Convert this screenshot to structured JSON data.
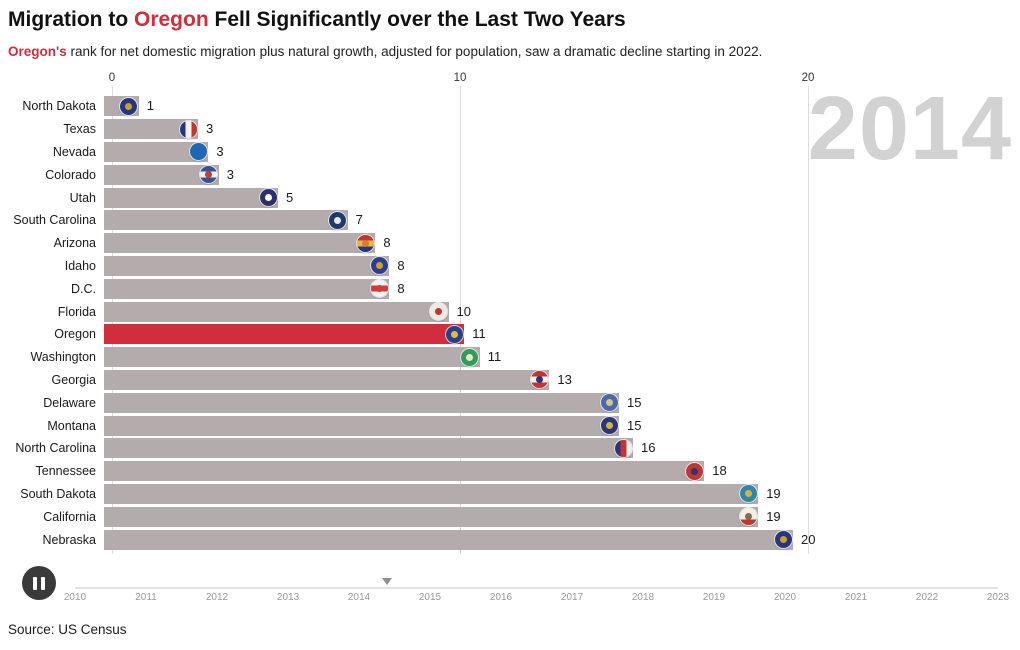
{
  "header": {
    "title_pre": "Migration to ",
    "title_highlight": "Oregon",
    "title_post": " Fell Significantly over the Last Two Years",
    "subtitle_highlight": "Oregon's",
    "subtitle_rest": " rank for net domestic migration plus natural growth, adjusted for population, saw a dramatic decline starting in 2022."
  },
  "year_label": "2014",
  "colors": {
    "highlight": "#d22d3d",
    "bar": "#b4acac",
    "watermark": "#d2d2d2",
    "grid": "#dcdcdc"
  },
  "chart_data": {
    "type": "bar",
    "orientation": "horizontal",
    "title": "Migration to Oregon Fell Significantly over the Last Two Years",
    "subtitle": "Oregon's rank for net domestic migration plus natural growth, adjusted for population, saw a dramatic decline starting in 2022.",
    "xlabel": "",
    "ylabel": "",
    "xlim": [
      0,
      20
    ],
    "x_ticks": [
      0,
      10,
      20
    ],
    "grid": true,
    "highlight_category": "Oregon",
    "categories": [
      "North Dakota",
      "Texas",
      "Nevada",
      "Colorado",
      "Utah",
      "South Carolina",
      "Arizona",
      "Idaho",
      "D.C.",
      "Florida",
      "Oregon",
      "Washington",
      "Georgia",
      "Delaware",
      "Montana",
      "North Carolina",
      "Tennessee",
      "South Dakota",
      "California",
      "Nebraska"
    ],
    "values": [
      1,
      3,
      3,
      3,
      5,
      7,
      8,
      8,
      8,
      10,
      11,
      11,
      13,
      15,
      15,
      16,
      18,
      19,
      19,
      20
    ],
    "bar_positions": [
      1.0,
      2.7,
      3.0,
      3.3,
      5.0,
      7.0,
      7.8,
      8.2,
      8.2,
      9.9,
      10.35,
      10.8,
      12.8,
      14.8,
      14.8,
      15.2,
      17.25,
      18.8,
      18.8,
      19.8
    ],
    "flags": [
      {
        "layout": "solid",
        "colors": [
          "#27357f"
        ],
        "emblem": "#c9a227"
      },
      {
        "layout": "v",
        "colors": [
          "#27357f",
          "#f2f2f2",
          "#c23531"
        ],
        "emblem": null
      },
      {
        "layout": "solid",
        "colors": [
          "#1d67b6"
        ],
        "emblem": null
      },
      {
        "layout": "h",
        "colors": [
          "#31549f",
          "#f2f2f2",
          "#31549f"
        ],
        "emblem": "#cf3a2e"
      },
      {
        "layout": "solid",
        "colors": [
          "#2b2f6e"
        ],
        "emblem": "#ffffff"
      },
      {
        "layout": "solid",
        "colors": [
          "#1d3a6d"
        ],
        "emblem": "#e8e8e8"
      },
      {
        "layout": "h",
        "colors": [
          "#c23531",
          "#e8b93c",
          "#2a3580"
        ],
        "emblem": "#cf7f38"
      },
      {
        "layout": "solid",
        "colors": [
          "#2a3f8f"
        ],
        "emblem": "#c9a227"
      },
      {
        "layout": "h",
        "colors": [
          "#f2f2f2",
          "#cf3a3a",
          "#f2f2f2"
        ],
        "emblem": "#cf3a3a"
      },
      {
        "layout": "solid",
        "colors": [
          "#efe9e4"
        ],
        "emblem": "#c23531"
      },
      {
        "layout": "solid",
        "colors": [
          "#24418c"
        ],
        "emblem": "#e8b93c"
      },
      {
        "layout": "solid",
        "colors": [
          "#2aa05a"
        ],
        "emblem": "#efe3c2"
      },
      {
        "layout": "h",
        "colors": [
          "#c23531",
          "#f2f2f2",
          "#c23531"
        ],
        "emblem": "#2a3580"
      },
      {
        "layout": "solid",
        "colors": [
          "#4a69a8"
        ],
        "emblem": "#d6c48e"
      },
      {
        "layout": "solid",
        "colors": [
          "#2a3580"
        ],
        "emblem": "#d9b23a"
      },
      {
        "layout": "v",
        "colors": [
          "#2a3580",
          "#c23531",
          "#f2f2f2"
        ],
        "emblem": null
      },
      {
        "layout": "solid",
        "colors": [
          "#c23531"
        ],
        "emblem": "#2a3580"
      },
      {
        "layout": "solid",
        "colors": [
          "#2e86ab"
        ],
        "emblem": "#d9b23a"
      },
      {
        "layout": "h",
        "colors": [
          "#f2efe6",
          "#f2efe6",
          "#c23531"
        ],
        "emblem": "#8a6a4a"
      },
      {
        "layout": "solid",
        "colors": [
          "#2a3580"
        ],
        "emblem": "#c9a227"
      }
    ]
  },
  "timeline": {
    "years": [
      "2010",
      "2011",
      "2012",
      "2013",
      "2014",
      "2015",
      "2016",
      "2017",
      "2018",
      "2019",
      "2020",
      "2021",
      "2022",
      "2023"
    ],
    "marker_year": 2014.4
  },
  "source": "Source: US Census"
}
